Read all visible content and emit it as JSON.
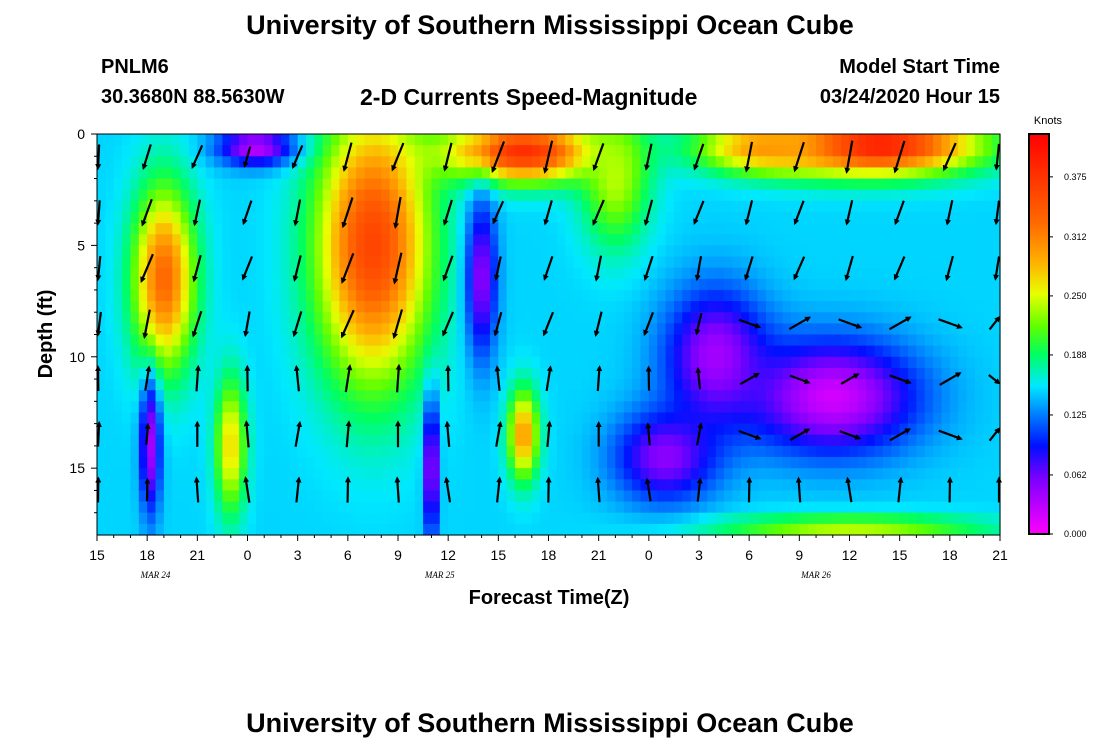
{
  "header": {
    "title": "University of Southern Mississippi Ocean Cube",
    "station_id": "PNLM6",
    "station_coords": "30.3680N 88.5630W",
    "model_start_label": "Model Start Time",
    "model_start_value": "03/24/2020 Hour 15"
  },
  "footer": {
    "title": "University of Southern Mississippi Ocean Cube"
  },
  "chart_data": {
    "type": "heatmap",
    "title": "2-D Currents Speed-Magnitude",
    "xlabel": "Forecast Time(Z)",
    "ylabel": "Depth (ft)",
    "x_range_hours": [
      0,
      54
    ],
    "y_range": [
      0,
      18
    ],
    "y_inverted": true,
    "x_ticks": [
      {
        "h": 0,
        "label": "15"
      },
      {
        "h": 3,
        "label": "18"
      },
      {
        "h": 6,
        "label": "21"
      },
      {
        "h": 9,
        "label": "0"
      },
      {
        "h": 12,
        "label": "3"
      },
      {
        "h": 15,
        "label": "6"
      },
      {
        "h": 18,
        "label": "9"
      },
      {
        "h": 21,
        "label": "12"
      },
      {
        "h": 24,
        "label": "15"
      },
      {
        "h": 27,
        "label": "18"
      },
      {
        "h": 30,
        "label": "21"
      },
      {
        "h": 33,
        "label": "0"
      },
      {
        "h": 36,
        "label": "3"
      },
      {
        "h": 39,
        "label": "6"
      },
      {
        "h": 42,
        "label": "9"
      },
      {
        "h": 45,
        "label": "12"
      },
      {
        "h": 48,
        "label": "15"
      },
      {
        "h": 51,
        "label": "18"
      },
      {
        "h": 54,
        "label": "21"
      }
    ],
    "date_labels": [
      {
        "h": 3.5,
        "label": "MAR 24"
      },
      {
        "h": 20.5,
        "label": "MAR 25"
      },
      {
        "h": 43,
        "label": "MAR 26"
      }
    ],
    "y_ticks": [
      {
        "v": 0,
        "label": "0"
      },
      {
        "v": 5,
        "label": "5"
      },
      {
        "v": 10,
        "label": "10"
      },
      {
        "v": 15,
        "label": "15"
      }
    ],
    "colorbar": {
      "unit": "Knots",
      "min": 0.0,
      "max": 0.42,
      "tick_labels": [
        "0.000",
        "0.062",
        "0.125",
        "0.188",
        "0.250",
        "0.312",
        "0.375"
      ],
      "tick_values": [
        0.0,
        0.062,
        0.125,
        0.188,
        0.25,
        0.312,
        0.375
      ]
    },
    "arrows_columns_hours": [
      0,
      3,
      6,
      9,
      12,
      15,
      18,
      21,
      24,
      27,
      30,
      33,
      36,
      39,
      42,
      45,
      48,
      51,
      54
    ],
    "arrow_depths": [
      1,
      3.5,
      6,
      8.5,
      11,
      13.5,
      16
    ],
    "speed_field_note_free": true,
    "speed_features": [
      {
        "t": 4,
        "d": 6.5,
        "sv": 0.33,
        "st": 1.8,
        "sd": 4
      },
      {
        "t": 16.5,
        "d": 5,
        "sv": 0.36,
        "st": 3.3,
        "sd": 6
      },
      {
        "t": 25.5,
        "d": 0.8,
        "sv": 0.38,
        "st": 4.5,
        "sd": 1.3
      },
      {
        "t": 46.5,
        "d": 0.5,
        "sv": 0.4,
        "st": 6,
        "sd": 1.3
      },
      {
        "t": 40,
        "d": 0.6,
        "sv": 0.3,
        "st": 4,
        "sd": 1.1
      },
      {
        "t": 31,
        "d": 2,
        "sv": 0.24,
        "st": 2,
        "sd": 3
      },
      {
        "t": 25.5,
        "d": 13.5,
        "sv": 0.3,
        "st": 0.9,
        "sd": 2
      },
      {
        "t": 8,
        "d": 14,
        "sv": 0.27,
        "st": 0.9,
        "sd": 3
      },
      {
        "t": 45,
        "d": 17.7,
        "sv": 0.24,
        "st": 8,
        "sd": 0.6
      },
      {
        "t": 9.5,
        "d": 0.6,
        "sv": 0.03,
        "st": 2.2,
        "sd": 0.8
      },
      {
        "t": 23,
        "d": 6.5,
        "sv": 0.05,
        "st": 0.9,
        "sd": 3.5
      },
      {
        "t": 20,
        "d": 15,
        "sv": 0.02,
        "st": 0.4,
        "sd": 3
      },
      {
        "t": 3.2,
        "d": 14,
        "sv": 0.04,
        "st": 0.6,
        "sd": 3
      },
      {
        "t": 44,
        "d": 11.8,
        "sv": 0.02,
        "st": 5,
        "sd": 2.5
      },
      {
        "t": 37,
        "d": 10,
        "sv": 0.04,
        "st": 3,
        "sd": 3
      },
      {
        "t": 34,
        "d": 14.5,
        "sv": 0.05,
        "st": 3,
        "sd": 2
      }
    ],
    "base_speed": 0.15,
    "arrows": [
      [
        [
          0,
          1,
          10,
          0.2
        ],
        [
          3,
          1,
          40,
          0.2
        ],
        [
          6,
          1,
          80,
          0.2
        ],
        [
          9,
          1,
          -30,
          0.2
        ],
        [
          12,
          1,
          40,
          0.2
        ],
        [
          15,
          1,
          30,
          0.2
        ],
        [
          18,
          1,
          35,
          0.2
        ],
        [
          21,
          1,
          40,
          0.2
        ],
        [
          24,
          1,
          40,
          0.2
        ],
        [
          27,
          1,
          40,
          0.2
        ],
        [
          30,
          1,
          40,
          0.2
        ],
        [
          33,
          1,
          40,
          0.2
        ],
        [
          36,
          1,
          40,
          0.2
        ],
        [
          39,
          1,
          40,
          0.2
        ],
        [
          42,
          1,
          40,
          0.2
        ],
        [
          45,
          1,
          40,
          0.2
        ],
        [
          48,
          1,
          40,
          0.2
        ],
        [
          51,
          1,
          40,
          0.2
        ],
        [
          54,
          1,
          40,
          0.2
        ]
      ],
      [
        [
          0,
          3.5,
          10,
          0.2
        ],
        [
          3,
          3.5,
          40,
          0.2
        ],
        [
          6,
          3.5,
          40,
          0.2
        ],
        [
          9,
          3.5,
          40,
          0.2
        ],
        [
          12,
          3.5,
          40,
          0.2
        ],
        [
          15,
          3.5,
          40,
          0.2
        ],
        [
          18,
          3.5,
          40,
          0.2
        ],
        [
          21,
          3.5,
          40,
          0.2
        ],
        [
          24,
          3.5,
          40,
          0.2
        ],
        [
          27,
          3.5,
          40,
          0.2
        ],
        [
          30,
          3.5,
          40,
          0.2
        ],
        [
          33,
          3.5,
          40,
          0.2
        ],
        [
          36,
          3.5,
          40,
          0.2
        ],
        [
          39,
          3.5,
          40,
          0.2
        ],
        [
          42,
          3.5,
          40,
          0.2
        ],
        [
          45,
          3.5,
          40,
          0.2
        ],
        [
          48,
          3.5,
          40,
          0.2
        ],
        [
          51,
          3.5,
          40,
          0.2
        ],
        [
          54,
          3.5,
          40,
          0.2
        ]
      ]
    ]
  }
}
